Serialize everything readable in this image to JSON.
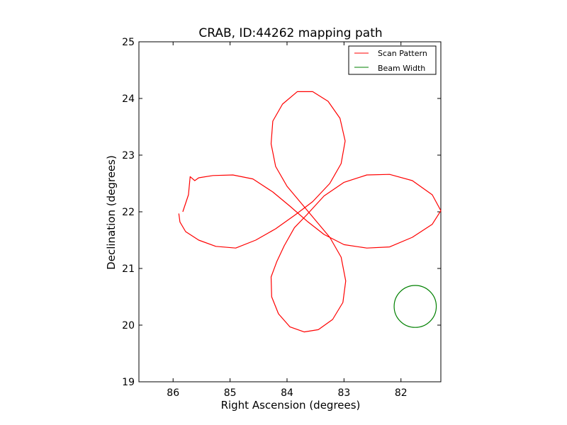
{
  "chart_data": {
    "type": "line",
    "title": "CRAB, ID:44262 mapping path",
    "xlabel": "Right Ascension (degrees)",
    "ylabel": "Declination (degrees)",
    "xlim": [
      86.6,
      81.3
    ],
    "ylim": [
      19,
      25
    ],
    "x_inverted": true,
    "xticks": [
      86,
      85,
      84,
      83,
      82
    ],
    "yticks": [
      19,
      20,
      21,
      22,
      23,
      24,
      25
    ],
    "xtick_labels": [
      "86",
      "85",
      "84",
      "83",
      "82"
    ],
    "ytick_labels": [
      "19",
      "20",
      "21",
      "22",
      "23",
      "24",
      "25"
    ],
    "grid": false,
    "legend": {
      "position": "top-right",
      "entries": [
        {
          "label": "Scan Pattern",
          "color": "#ff0000"
        },
        {
          "label": "Beam Width",
          "color": "#008000"
        }
      ]
    },
    "series": [
      {
        "name": "Scan Pattern",
        "color": "#ff0000",
        "points": [
          [
            85.83,
            22.0
          ],
          [
            85.78,
            22.15
          ],
          [
            85.73,
            22.3
          ],
          [
            85.7,
            22.62
          ],
          [
            85.62,
            22.55
          ],
          [
            85.55,
            22.6
          ],
          [
            85.3,
            22.64
          ],
          [
            84.95,
            22.65
          ],
          [
            84.6,
            22.58
          ],
          [
            84.25,
            22.35
          ],
          [
            83.95,
            22.1
          ],
          [
            83.63,
            21.82
          ],
          [
            83.35,
            21.6
          ],
          [
            83.0,
            21.42
          ],
          [
            82.6,
            21.36
          ],
          [
            82.2,
            21.38
          ],
          [
            81.8,
            21.55
          ],
          [
            81.45,
            21.78
          ],
          [
            81.3,
            22.02
          ],
          [
            81.45,
            22.3
          ],
          [
            81.8,
            22.55
          ],
          [
            82.2,
            22.66
          ],
          [
            82.6,
            22.65
          ],
          [
            83.0,
            22.52
          ],
          [
            83.35,
            22.28
          ],
          [
            83.65,
            21.95
          ],
          [
            83.87,
            21.72
          ],
          [
            84.05,
            21.4
          ],
          [
            84.18,
            21.12
          ],
          [
            84.28,
            20.85
          ],
          [
            84.27,
            20.5
          ],
          [
            84.15,
            20.2
          ],
          [
            83.95,
            19.97
          ],
          [
            83.7,
            19.88
          ],
          [
            83.45,
            19.92
          ],
          [
            83.2,
            20.1
          ],
          [
            83.02,
            20.4
          ],
          [
            82.97,
            20.78
          ],
          [
            83.05,
            21.2
          ],
          [
            83.25,
            21.55
          ],
          [
            83.5,
            21.85
          ],
          [
            83.75,
            22.15
          ],
          [
            84.0,
            22.45
          ],
          [
            84.2,
            22.8
          ],
          [
            84.28,
            23.2
          ],
          [
            84.25,
            23.6
          ],
          [
            84.08,
            23.9
          ],
          [
            83.82,
            24.12
          ],
          [
            83.55,
            24.12
          ],
          [
            83.28,
            23.95
          ],
          [
            83.07,
            23.65
          ],
          [
            82.98,
            23.25
          ],
          [
            83.05,
            22.85
          ],
          [
            83.25,
            22.5
          ],
          [
            83.55,
            22.18
          ],
          [
            83.85,
            21.95
          ],
          [
            84.2,
            21.7
          ],
          [
            84.55,
            21.5
          ],
          [
            84.9,
            21.36
          ],
          [
            85.25,
            21.39
          ],
          [
            85.55,
            21.5
          ],
          [
            85.78,
            21.65
          ],
          [
            85.88,
            21.82
          ],
          [
            85.9,
            21.97
          ]
        ]
      },
      {
        "name": "Beam Width",
        "color": "#008000",
        "shape": "circle",
        "center": [
          81.75,
          20.33
        ],
        "radius_deg": 0.37
      }
    ]
  }
}
